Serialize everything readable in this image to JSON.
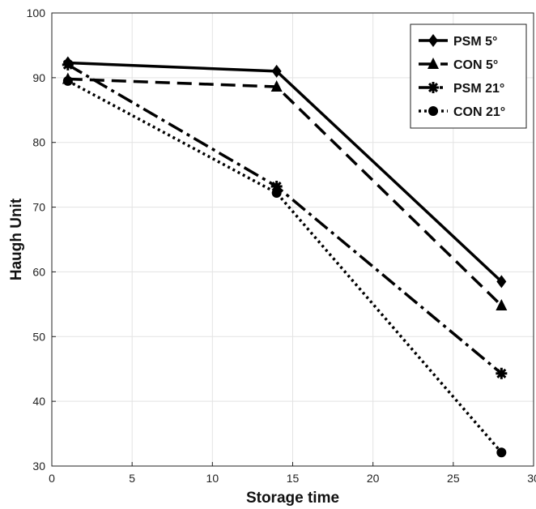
{
  "chart_data": {
    "type": "line",
    "title": "",
    "xlabel": "Storage time",
    "ylabel": "Haugh Unit",
    "xlim": [
      0,
      30
    ],
    "ylim": [
      30,
      100
    ],
    "xticks": [
      0,
      5,
      10,
      15,
      20,
      25,
      30
    ],
    "yticks": [
      30,
      40,
      50,
      60,
      70,
      80,
      90,
      100
    ],
    "grid": true,
    "legend_position": "top-right",
    "x": [
      1,
      14,
      28
    ],
    "series": [
      {
        "name": "PSM 5°",
        "values": [
          92.3,
          91.0,
          58.5
        ],
        "line": "solid",
        "marker": "diamond",
        "color": "#000000"
      },
      {
        "name": "CON 5°",
        "values": [
          89.8,
          88.6,
          54.8
        ],
        "line": "dashed",
        "marker": "triangle",
        "color": "#000000"
      },
      {
        "name": "PSM 21°",
        "values": [
          92.0,
          73.2,
          44.3
        ],
        "line": "dashdot",
        "marker": "star",
        "color": "#000000"
      },
      {
        "name": "CON 21°",
        "values": [
          89.5,
          72.2,
          32.1
        ],
        "line": "dotted",
        "marker": "circle",
        "color": "#000000"
      }
    ]
  }
}
